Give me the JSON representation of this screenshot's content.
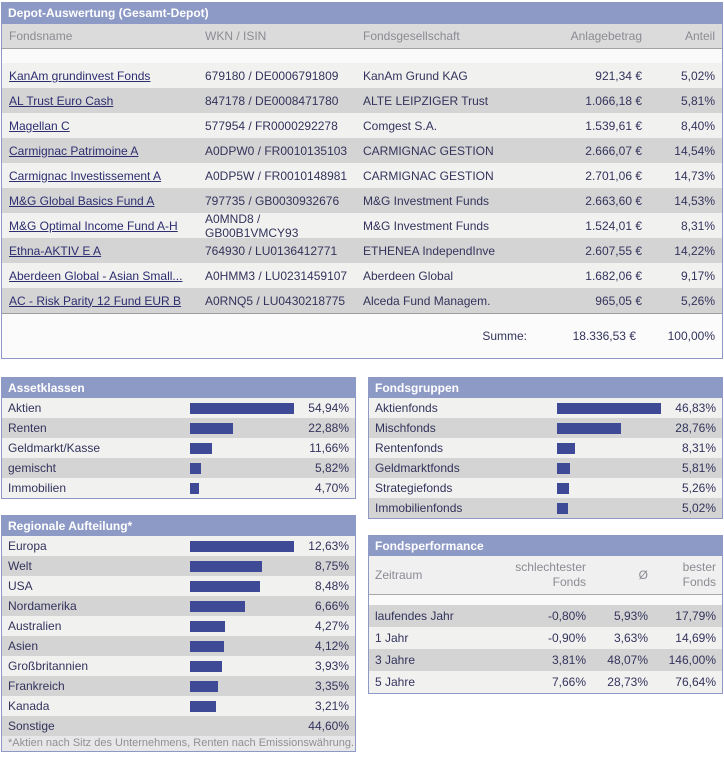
{
  "window": {
    "title": "Depot-Auswertung (Gesamt-Depot)"
  },
  "colors": {
    "accent_header": "#8E9AC6",
    "bar": "#3E4A96",
    "row_light": "#F1F1F0",
    "row_dark": "#D4D4D4",
    "link_text": "#2D2D70"
  },
  "holdings_table": {
    "columns": [
      "Fondsname",
      "WKN / ISIN",
      "Fondsgesellschaft",
      "Anlagebetrag",
      "Anteil"
    ],
    "rows": [
      {
        "name": "KanAm grundinvest Fonds",
        "wkn_isin": "679180 / DE0006791809",
        "company": "KanAm Grund KAG",
        "amount": "921,34 €",
        "share": "5,02%"
      },
      {
        "name": "AL Trust Euro Cash",
        "wkn_isin": "847178 / DE0008471780",
        "company": "ALTE LEIPZIGER Trust",
        "amount": "1.066,18 €",
        "share": "5,81%"
      },
      {
        "name": "Magellan C",
        "wkn_isin": "577954 / FR0000292278",
        "company": "Comgest S.A.",
        "amount": "1.539,61 €",
        "share": "8,40%"
      },
      {
        "name": "Carmignac Patrimoine A",
        "wkn_isin": "A0DPW0 / FR0010135103",
        "company": "CARMIGNAC GESTION",
        "amount": "2.666,07 €",
        "share": "14,54%"
      },
      {
        "name": "Carmignac Investissement A",
        "wkn_isin": "A0DP5W / FR0010148981",
        "company": "CARMIGNAC GESTION",
        "amount": "2.701,06 €",
        "share": "14,73%"
      },
      {
        "name": "M&G Global Basics Fund A",
        "wkn_isin": "797735 / GB0030932676",
        "company": "M&G Investment Funds",
        "amount": "2.663,60 €",
        "share": "14,53%"
      },
      {
        "name": "M&G Optimal Income Fund A-H",
        "wkn_isin": "A0MND8 / GB00B1VMCY93",
        "company": "M&G Investment Funds",
        "amount": "1.524,01 €",
        "share": "8,31%"
      },
      {
        "name": "Ethna-AKTIV E A",
        "wkn_isin": "764930 / LU0136412771",
        "company": "ETHENEA IndependInve",
        "amount": "2.607,55 €",
        "share": "14,22%"
      },
      {
        "name": "Aberdeen Global - Asian Small...",
        "wkn_isin": "A0HMM3 / LU0231459107",
        "company": "Aberdeen Global",
        "amount": "1.682,06 €",
        "share": "9,17%"
      },
      {
        "name": "AC - Risk Parity 12 Fund EUR B",
        "wkn_isin": "A0RNQ5 / LU0430218775",
        "company": "Alceda Fund Managem.",
        "amount": "965,05 €",
        "share": "5,26%"
      }
    ],
    "summary": {
      "label": "Summe:",
      "amount": "18.336,53 €",
      "share": "100,00%"
    }
  },
  "chart_data": [
    {
      "type": "bar",
      "title": "Assetklassen",
      "categories": [
        "Aktien",
        "Renten",
        "Geldmarkt/Kasse",
        "gemischt",
        "Immobilien"
      ],
      "values": [
        54.94,
        22.88,
        11.66,
        5.82,
        4.7
      ]
    },
    {
      "type": "bar",
      "title": "Fondsgruppen",
      "categories": [
        "Aktienfonds",
        "Mischfonds",
        "Rentenfonds",
        "Geldmarktfonds",
        "Strategiefonds",
        "Immobilienfonds"
      ],
      "values": [
        46.83,
        28.76,
        8.31,
        5.81,
        5.26,
        5.02
      ]
    },
    {
      "type": "bar",
      "title": "Regionale Aufteilung*",
      "categories": [
        "Europa",
        "Welt",
        "USA",
        "Nordamerika",
        "Australien",
        "Asien",
        "Großbritannien",
        "Frankreich",
        "Kanada",
        "Sonstige"
      ],
      "values": [
        12.63,
        8.75,
        8.48,
        6.66,
        4.27,
        4.12,
        3.93,
        3.35,
        3.21,
        44.6
      ]
    },
    {
      "type": "table",
      "title": "Fondsperformance",
      "columns": [
        "Zeitraum",
        "schlechtester Fonds",
        "Ø",
        "bester Fonds"
      ],
      "rows": [
        [
          "laufendes Jahr",
          "-0,80%",
          "5,93%",
          "17,79%"
        ],
        [
          "1 Jahr",
          "-0,90%",
          "3,63%",
          "14,69%"
        ],
        [
          "3 Jahre",
          "3,81%",
          "48,07%",
          "146,00%"
        ],
        [
          "5 Jahre",
          "7,66%",
          "28,73%",
          "76,64%"
        ]
      ]
    }
  ],
  "asset_classes": {
    "title": "Assetklassen",
    "rows": [
      {
        "label": "Aktien",
        "value": "54,94%"
      },
      {
        "label": "Renten",
        "value": "22,88%"
      },
      {
        "label": "Geldmarkt/Kasse",
        "value": "11,66%"
      },
      {
        "label": "gemischt",
        "value": "5,82%"
      },
      {
        "label": "Immobilien",
        "value": "4,70%"
      }
    ]
  },
  "fund_groups": {
    "title": "Fondsgruppen",
    "rows": [
      {
        "label": "Aktienfonds",
        "value": "46,83%"
      },
      {
        "label": "Mischfonds",
        "value": "28,76%"
      },
      {
        "label": "Rentenfonds",
        "value": "8,31%"
      },
      {
        "label": "Geldmarktfonds",
        "value": "5,81%"
      },
      {
        "label": "Strategiefonds",
        "value": "5,26%"
      },
      {
        "label": "Immobilienfonds",
        "value": "5,02%"
      }
    ]
  },
  "regions": {
    "title": "Regionale Aufteilung*",
    "rows": [
      {
        "label": "Europa",
        "value": "12,63%"
      },
      {
        "label": "Welt",
        "value": "8,75%"
      },
      {
        "label": "USA",
        "value": "8,48%"
      },
      {
        "label": "Nordamerika",
        "value": "6,66%"
      },
      {
        "label": "Australien",
        "value": "4,27%"
      },
      {
        "label": "Asien",
        "value": "4,12%"
      },
      {
        "label": "Großbritannien",
        "value": "3,93%"
      },
      {
        "label": "Frankreich",
        "value": "3,35%"
      },
      {
        "label": "Kanada",
        "value": "3,21%"
      },
      {
        "label": "Sonstige",
        "value": "44,60%",
        "bar": false
      }
    ],
    "footnote": "*Aktien nach Sitz des Unternehmens, Renten nach Emissionswährung."
  },
  "performance": {
    "title": "Fondsperformance",
    "columns": [
      "Zeitraum",
      "schlechtester Fonds",
      "Ø",
      "bester Fonds"
    ],
    "rows": [
      {
        "period": "laufendes Jahr",
        "worst": "-0,80%",
        "avg": "5,93%",
        "best": "17,79%"
      },
      {
        "period": "1 Jahr",
        "worst": "-0,90%",
        "avg": "3,63%",
        "best": "14,69%"
      },
      {
        "period": "3 Jahre",
        "worst": "3,81%",
        "avg": "48,07%",
        "best": "146,00%"
      },
      {
        "period": "5 Jahre",
        "worst": "7,66%",
        "avg": "28,73%",
        "best": "76,64%"
      }
    ]
  }
}
